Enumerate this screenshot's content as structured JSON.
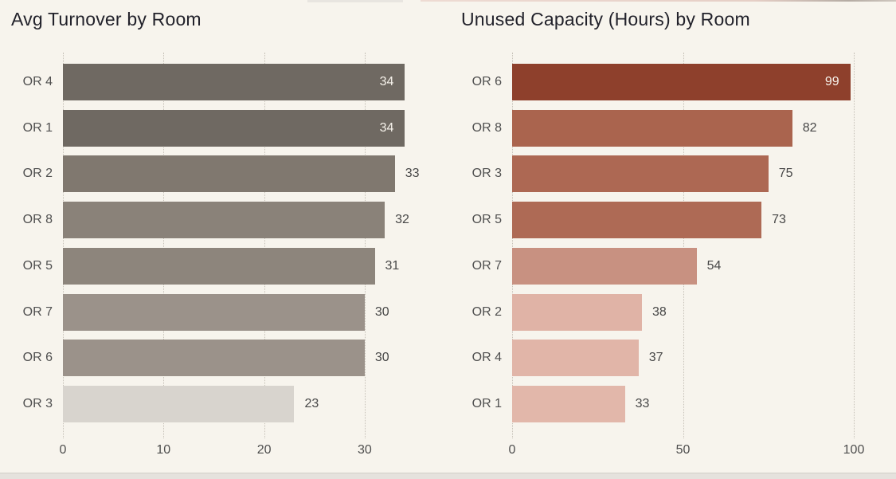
{
  "chart_data": [
    {
      "type": "bar",
      "orientation": "horizontal",
      "title": "Avg Turnover by Room",
      "categories": [
        "OR 4",
        "OR 1",
        "OR 2",
        "OR 8",
        "OR 5",
        "OR 7",
        "OR 6",
        "OR 3"
      ],
      "values": [
        34,
        34,
        33,
        32,
        31,
        30,
        30,
        23
      ],
      "xlim": [
        0,
        36
      ],
      "ticks": [
        0,
        10,
        20,
        30
      ],
      "grid": "dotted-vertical",
      "legend": "none",
      "bar_colors": [
        "#6f6962",
        "#6f6962",
        "#80786f",
        "#8a8279",
        "#8d857c",
        "#9b928a",
        "#9b928a",
        "#d8d4ce"
      ],
      "label_inside": [
        true,
        true,
        false,
        false,
        false,
        false,
        false,
        false
      ]
    },
    {
      "type": "bar",
      "orientation": "horizontal",
      "title": "Unused Capacity (Hours) by Room",
      "categories": [
        "OR 6",
        "OR 8",
        "OR 3",
        "OR 5",
        "OR 7",
        "OR 2",
        "OR 4",
        "OR 1"
      ],
      "values": [
        99,
        82,
        75,
        73,
        54,
        38,
        37,
        33
      ],
      "xlim": [
        0,
        103
      ],
      "ticks": [
        0,
        50,
        100
      ],
      "grid": "dotted-vertical",
      "legend": "none",
      "bar_colors": [
        "#8e402c",
        "#aa644e",
        "#ad6853",
        "#ae6a55",
        "#c89181",
        "#e0b3a6",
        "#e1b5a8",
        "#e2b7aa"
      ],
      "label_inside": [
        true,
        false,
        false,
        false,
        false,
        false,
        false,
        false
      ]
    }
  ],
  "colors": {
    "background": "#f7f4ed",
    "title_text": "#22222b",
    "axis_text": "#4e4e4e",
    "value_text_outside": "#474747",
    "value_text_inside": "#f7f3ec",
    "gridline": "#c6c1b8",
    "footer_strip": "#e5e2dd"
  }
}
